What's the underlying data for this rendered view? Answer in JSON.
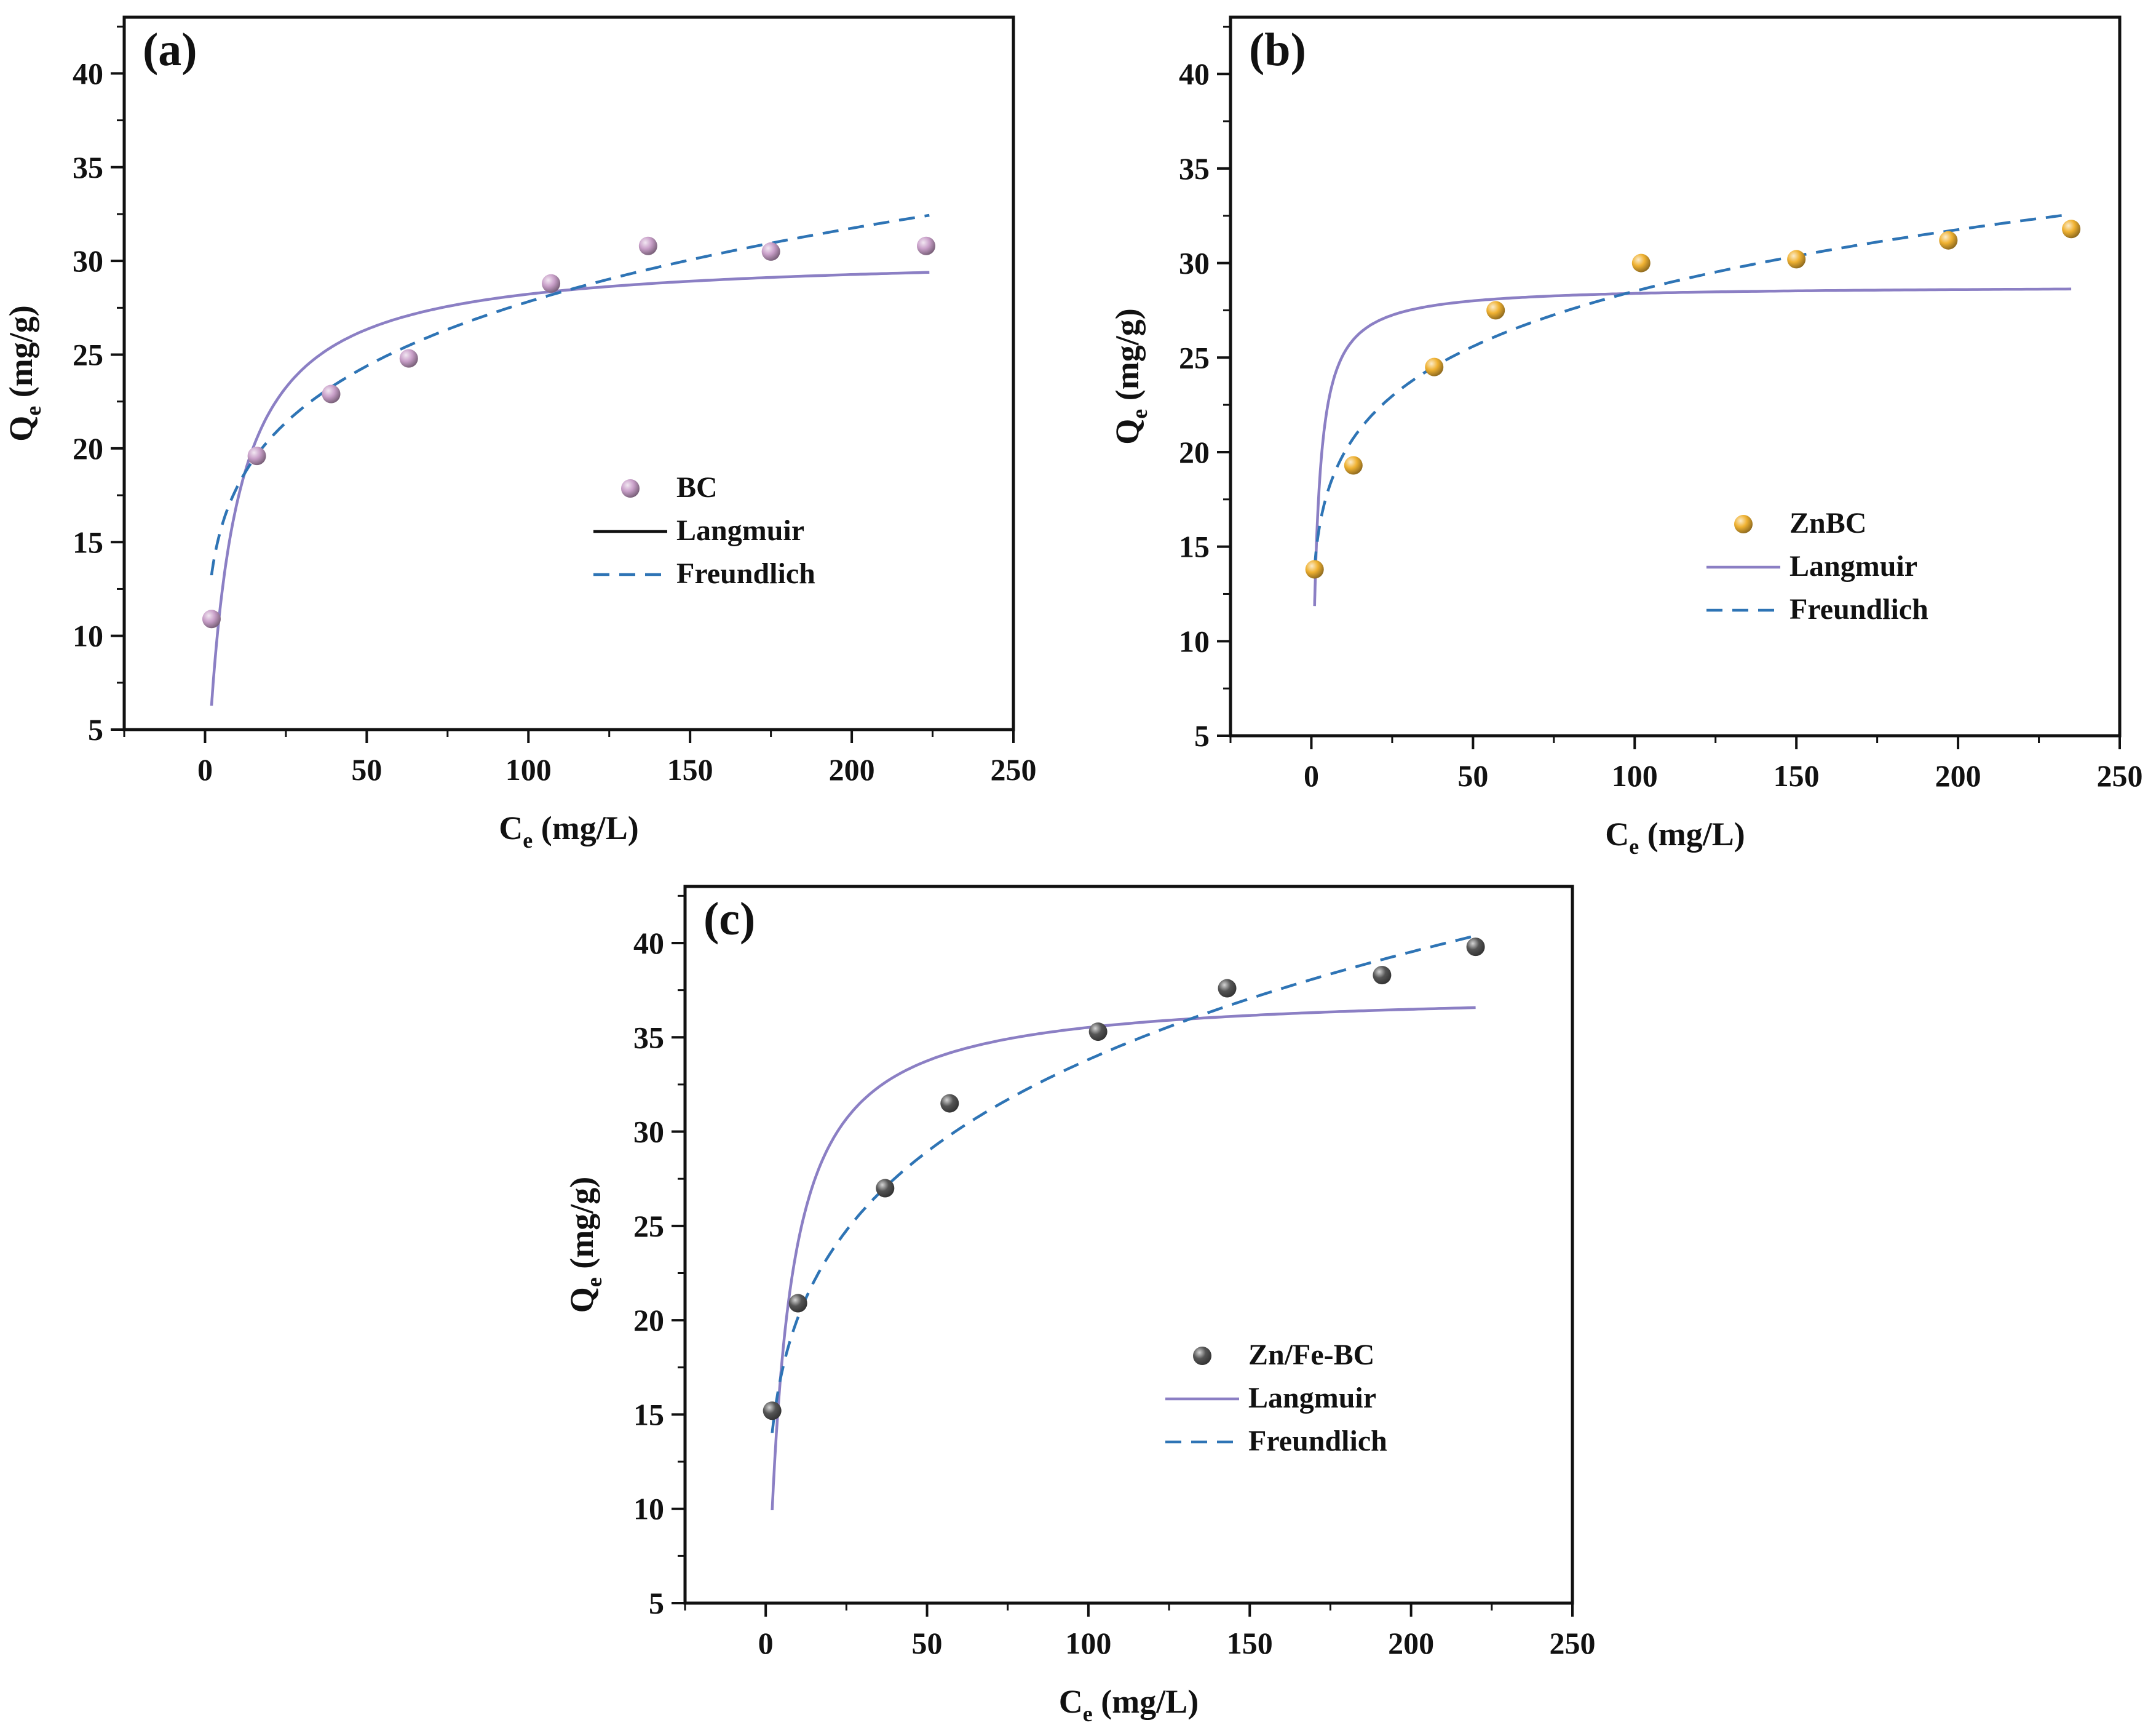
{
  "chart_data": [
    {
      "type": "scatter",
      "panel_label": "(a)",
      "xlabel": "C",
      "xlabel_sub": "e",
      "xlabel_unit": "(mg/L)",
      "ylabel": "Q",
      "ylabel_sub": "e",
      "ylabel_unit": "(mg/g)",
      "xlim": [
        -25,
        250
      ],
      "ylim": [
        5,
        43
      ],
      "xticks": [
        0,
        50,
        100,
        150,
        200,
        250
      ],
      "yticks": [
        5,
        10,
        15,
        20,
        25,
        30,
        35,
        40
      ],
      "legend_position": "center-right",
      "series": [
        {
          "name": "BC",
          "kind": "points",
          "color": "#c9a0c9",
          "x": [
            2,
            16,
            39,
            63,
            107,
            137,
            175,
            223
          ],
          "y": [
            10.9,
            19.6,
            22.9,
            24.8,
            28.8,
            30.8,
            30.5,
            30.8
          ]
        },
        {
          "name": "Langmuir",
          "kind": "langmuir",
          "color": "#8b7fc4",
          "legend_color": "#111111",
          "qm": 30.4,
          "KL": 0.13,
          "x_range": [
            2,
            224
          ]
        },
        {
          "name": "Freundlich",
          "kind": "freundlich",
          "color": "#2e74b5",
          "KF": 11.6,
          "n_inv": 0.19,
          "x_range": [
            2,
            224
          ]
        }
      ]
    },
    {
      "type": "scatter",
      "panel_label": "(b)",
      "xlabel": "C",
      "xlabel_sub": "e",
      "xlabel_unit": "(mg/L)",
      "ylabel": "Q",
      "ylabel_sub": "e",
      "ylabel_unit": "(mg/g)",
      "xlim": [
        -25,
        250
      ],
      "ylim": [
        5,
        43
      ],
      "xticks": [
        0,
        50,
        100,
        150,
        200,
        250
      ],
      "yticks": [
        5,
        10,
        15,
        20,
        25,
        30,
        35,
        40
      ],
      "legend_position": "center-right",
      "series": [
        {
          "name": "ZnBC",
          "kind": "points",
          "color": "#f0b232",
          "x": [
            1,
            13,
            38,
            57,
            102,
            150,
            197,
            235
          ],
          "y": [
            13.8,
            19.3,
            24.5,
            27.5,
            30.0,
            30.2,
            31.2,
            31.8
          ]
        },
        {
          "name": "Langmuir",
          "kind": "langmuir",
          "color": "#8b7fc4",
          "legend_color": "#8b7fc4",
          "qm": 28.8,
          "KL": 0.7,
          "x_range": [
            1,
            235
          ]
        },
        {
          "name": "Freundlich",
          "kind": "freundlich",
          "color": "#2e74b5",
          "KF": 13.9,
          "n_inv": 0.156,
          "x_range": [
            1,
            235
          ]
        }
      ]
    },
    {
      "type": "scatter",
      "panel_label": "(c)",
      "xlabel": "C",
      "xlabel_sub": "e",
      "xlabel_unit": "(mg/L)",
      "ylabel": "Q",
      "ylabel_sub": "e",
      "ylabel_unit": "(mg/g)",
      "xlim": [
        -25,
        250
      ],
      "ylim": [
        5,
        43
      ],
      "xticks": [
        0,
        50,
        100,
        150,
        200,
        250
      ],
      "yticks": [
        5,
        10,
        15,
        20,
        25,
        30,
        35,
        40
      ],
      "legend_position": "bottom-right",
      "series": [
        {
          "name": "Zn/Fe-BC",
          "kind": "points",
          "color": "#555555",
          "x": [
            2,
            10,
            37,
            57,
            103,
            143,
            191,
            220
          ],
          "y": [
            15.2,
            20.9,
            27.0,
            31.5,
            35.3,
            37.6,
            38.3,
            39.8
          ]
        },
        {
          "name": "Langmuir",
          "kind": "langmuir",
          "color": "#8b7fc4",
          "legend_color": "#8b7fc4",
          "qm": 37.5,
          "KL": 0.18,
          "x_range": [
            2,
            220
          ]
        },
        {
          "name": "Freundlich",
          "kind": "freundlich",
          "color": "#2e74b5",
          "KF": 12.0,
          "n_inv": 0.225,
          "x_range": [
            2,
            220
          ]
        }
      ]
    }
  ]
}
